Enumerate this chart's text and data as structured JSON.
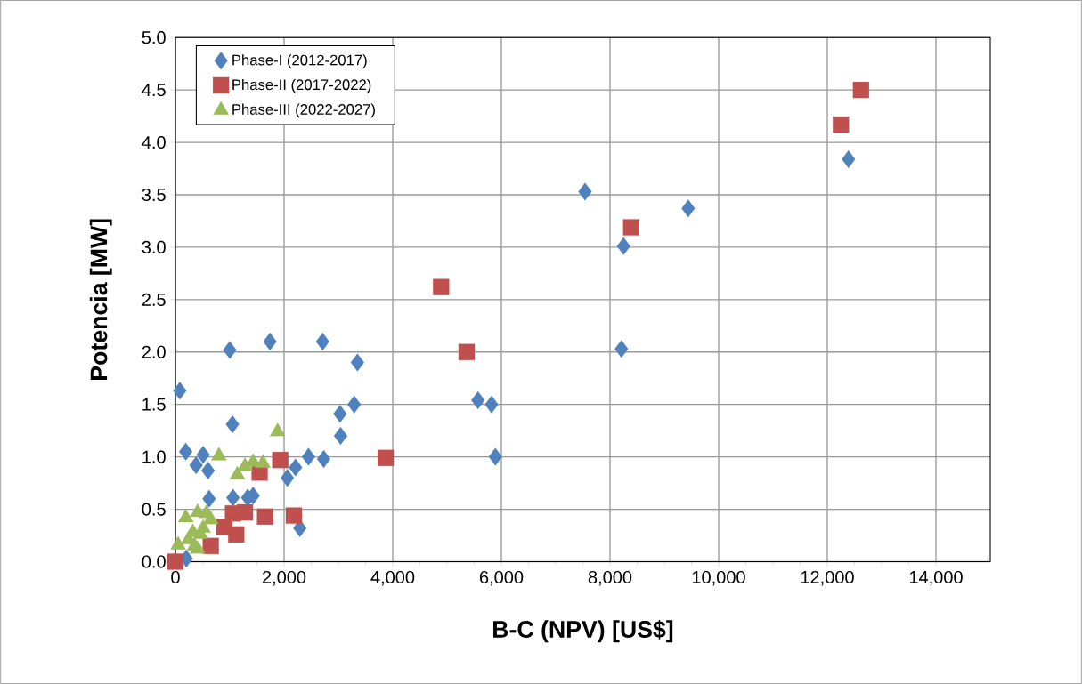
{
  "chart_data": {
    "type": "scatter",
    "xlabel": "B-C (NPV)  [US$]",
    "ylabel": "Potencia [MW]",
    "xlim": [
      0,
      15000
    ],
    "ylim": [
      0,
      5.0
    ],
    "xticks": [
      0,
      {
        "value": 2000,
        "label": "2,000"
      },
      {
        "value": 4000,
        "label": "4,000"
      },
      {
        "value": 6000,
        "label": "6,000"
      },
      {
        "value": 8000,
        "label": "8,000"
      },
      {
        "value": 10000,
        "label": "10,000"
      },
      {
        "value": 12000,
        "label": "12,000"
      },
      {
        "value": 14000,
        "label": "14,000"
      }
    ],
    "yticks": [
      {
        "value": 0,
        "label": "0.0"
      },
      {
        "value": 0.5,
        "label": "0.5"
      },
      {
        "value": 1,
        "label": "1.0"
      },
      {
        "value": 1.5,
        "label": "1.5"
      },
      {
        "value": 2,
        "label": "2.0"
      },
      {
        "value": 2.5,
        "label": "2.5"
      },
      {
        "value": 3,
        "label": "3.0"
      },
      {
        "value": 3.5,
        "label": "3.5"
      },
      {
        "value": 4,
        "label": "4.0"
      },
      {
        "value": 4.5,
        "label": "4.5"
      },
      {
        "value": 5,
        "label": "5.0"
      }
    ],
    "grid": true,
    "legend": "top left",
    "series": [
      {
        "name": "Phase-I (2012-2017)",
        "color": "#4f81bd",
        "marker": "diamond",
        "x": [
          1000,
          1740,
          2710,
          3350,
          3290,
          3030,
          3040,
          1050,
          80,
          190,
          510,
          380,
          600,
          2450,
          2730,
          2210,
          2060,
          620,
          1060,
          1330,
          1430,
          2290,
          5570,
          5820,
          5890,
          200,
          7540,
          8250,
          8210,
          9440,
          12390
        ],
        "values": [
          2.02,
          2.1,
          2.1,
          1.9,
          1.5,
          1.41,
          1.2,
          1.31,
          1.63,
          1.05,
          1.02,
          0.92,
          0.87,
          1.0,
          0.98,
          0.9,
          0.8,
          0.6,
          0.61,
          0.61,
          0.63,
          0.32,
          1.54,
          1.5,
          1.0,
          0.03,
          3.53,
          3.01,
          2.03,
          3.37,
          3.84
        ]
      },
      {
        "name": "Phase-II (2017-2022)",
        "color": "#c0504d",
        "marker": "square",
        "x": [
          5360,
          3870,
          1930,
          1550,
          2180,
          4890,
          8390,
          12250,
          12620,
          0,
          1060,
          1280,
          1650,
          1120,
          900,
          650
        ],
        "values": [
          2.0,
          0.99,
          0.97,
          0.85,
          0.44,
          2.62,
          3.19,
          4.17,
          4.5,
          0.0,
          0.46,
          0.47,
          0.43,
          0.26,
          0.33,
          0.15
        ]
      },
      {
        "name": "Phase-III (2022-2027)",
        "color": "#9bbb59",
        "marker": "triangle",
        "x": [
          1880,
          800,
          1140,
          1280,
          1430,
          1610,
          190,
          410,
          570,
          650,
          50,
          240,
          350,
          460,
          510,
          320,
          410
        ],
        "values": [
          1.24,
          1.01,
          0.83,
          0.91,
          0.95,
          0.94,
          0.42,
          0.47,
          0.46,
          0.4,
          0.16,
          0.21,
          0.15,
          0.26,
          0.32,
          0.28,
          0.12
        ]
      }
    ]
  }
}
